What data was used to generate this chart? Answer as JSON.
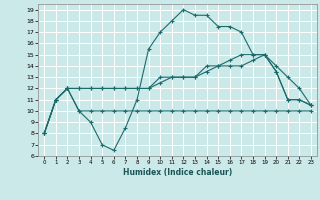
{
  "xlabel": "Humidex (Indice chaleur)",
  "xlim": [
    -0.5,
    23.5
  ],
  "ylim": [
    6,
    19.5
  ],
  "xticks": [
    0,
    1,
    2,
    3,
    4,
    5,
    6,
    7,
    8,
    9,
    10,
    11,
    12,
    13,
    14,
    15,
    16,
    17,
    18,
    19,
    20,
    21,
    22,
    23
  ],
  "yticks": [
    6,
    7,
    8,
    9,
    10,
    11,
    12,
    13,
    14,
    15,
    16,
    17,
    18,
    19
  ],
  "bg_color": "#cce9e9",
  "grid_color": "#ffffff",
  "line_color": "#1a6b6b",
  "lines": [
    {
      "x": [
        0,
        1,
        2,
        3,
        4,
        5,
        6,
        7,
        8,
        9,
        10,
        11,
        12,
        13,
        14,
        15,
        16,
        17,
        18,
        19,
        20,
        21,
        22,
        23
      ],
      "y": [
        8,
        11,
        12,
        10,
        9,
        7,
        6.5,
        8.5,
        11,
        15.5,
        17,
        18,
        19,
        18.5,
        18.5,
        17.5,
        17.5,
        17,
        15,
        15,
        13.5,
        11,
        11,
        10.5
      ]
    },
    {
      "x": [
        0,
        1,
        2,
        3,
        4,
        5,
        6,
        7,
        8,
        9,
        10,
        11,
        12,
        13,
        14,
        15,
        16,
        17,
        18,
        19,
        20,
        21,
        22,
        23
      ],
      "y": [
        8,
        11,
        12,
        10,
        10,
        10,
        10,
        10,
        10,
        10,
        10,
        10,
        10,
        10,
        10,
        10,
        10,
        10,
        10,
        10,
        10,
        10,
        10,
        10
      ]
    },
    {
      "x": [
        0,
        1,
        2,
        3,
        4,
        5,
        6,
        7,
        8,
        9,
        10,
        11,
        12,
        13,
        14,
        15,
        16,
        17,
        18,
        19,
        20,
        21,
        22,
        23
      ],
      "y": [
        8,
        11,
        12,
        12,
        12,
        12,
        12,
        12,
        12,
        12,
        13,
        13,
        13,
        13,
        14,
        14,
        14,
        14,
        14.5,
        15,
        13.5,
        11,
        11,
        10.5
      ]
    },
    {
      "x": [
        0,
        1,
        2,
        3,
        4,
        5,
        6,
        7,
        8,
        9,
        10,
        11,
        12,
        13,
        14,
        15,
        16,
        17,
        18,
        19,
        20,
        21,
        22,
        23
      ],
      "y": [
        8,
        11,
        12,
        12,
        12,
        12,
        12,
        12,
        12,
        12,
        12.5,
        13,
        13,
        13,
        13.5,
        14,
        14.5,
        15,
        15,
        15,
        14,
        13,
        12,
        10.5
      ]
    }
  ]
}
